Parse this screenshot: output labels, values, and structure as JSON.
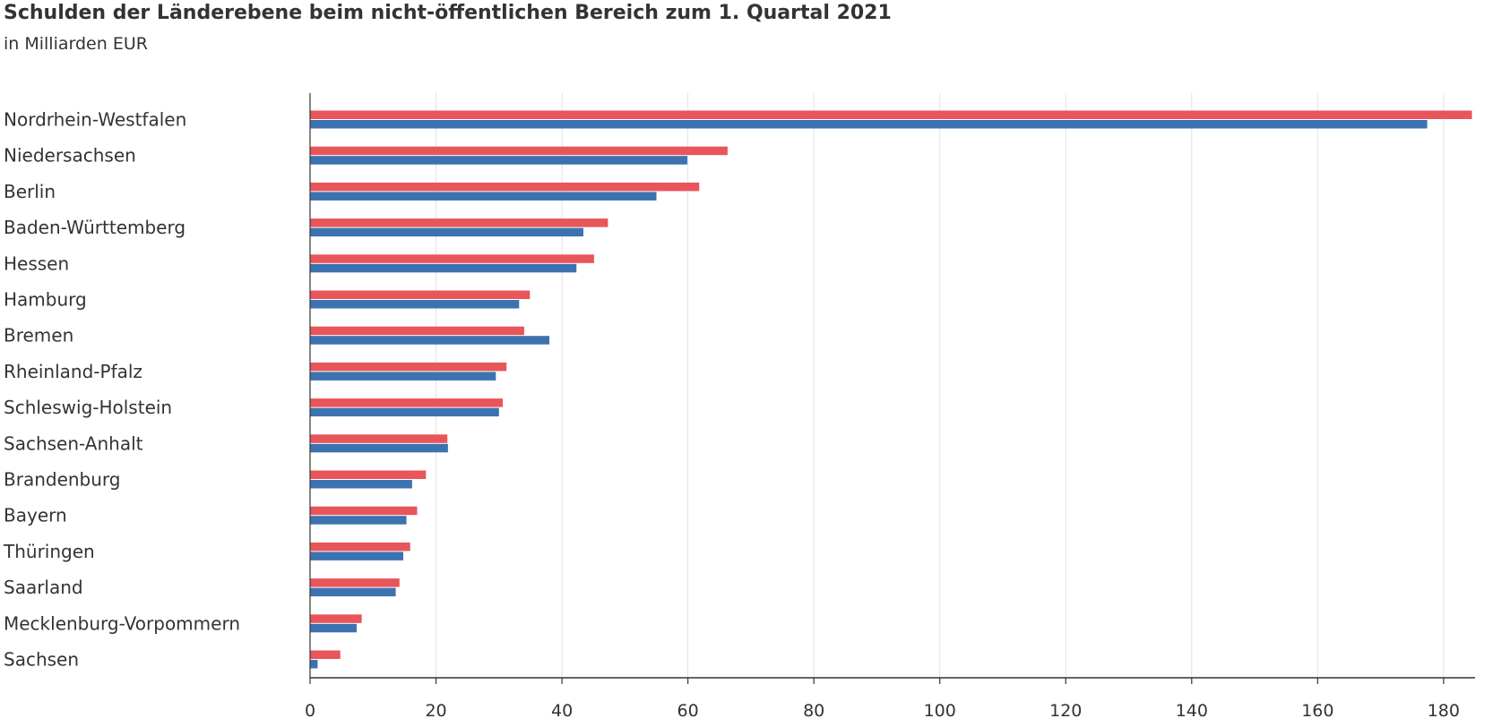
{
  "chart_data": {
    "type": "bar",
    "orientation": "horizontal",
    "title": "Schulden der Länderebene beim nicht-öffentlichen Bereich zum 1. Quartal 2021",
    "subtitle": "in Milliarden EUR",
    "categories": [
      "Nordrhein-Westfalen",
      "Niedersachsen",
      "Berlin",
      "Baden-Württemberg",
      "Hessen",
      "Hamburg",
      "Bremen",
      "Rheinland-Pfalz",
      "Schleswig-Holstein",
      "Sachsen-Anhalt",
      "Brandenburg",
      "Bayern",
      "Thüringen",
      "Saarland",
      "Mecklenburg-Vorpommern",
      "Sachsen"
    ],
    "series": [
      {
        "color": "#e8555a",
        "values": [
          184.5,
          66.3,
          61.8,
          47.3,
          45.1,
          34.9,
          34.0,
          31.2,
          30.6,
          21.8,
          18.4,
          17.0,
          15.9,
          14.2,
          8.2,
          4.8
        ]
      },
      {
        "color": "#3d72b0",
        "values": [
          177.4,
          59.9,
          55.0,
          43.4,
          42.3,
          33.2,
          38.0,
          29.5,
          30.0,
          21.9,
          16.2,
          15.3,
          14.8,
          13.6,
          7.4,
          1.2
        ]
      }
    ],
    "xlim": [
      0,
      185
    ],
    "xticks": [
      "0",
      "20",
      "40",
      "60",
      "80",
      "100",
      "120",
      "140",
      "160",
      "180"
    ],
    "grid": true
  }
}
